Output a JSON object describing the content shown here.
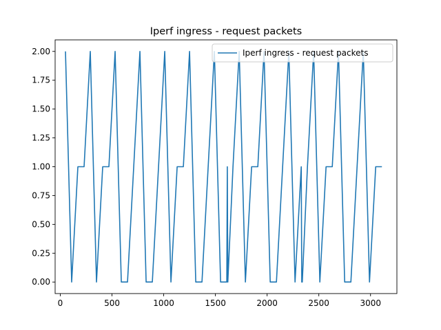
{
  "chart_data": {
    "type": "line",
    "title": "Iperf ingress - request packets",
    "xlabel": "",
    "ylabel": "",
    "xlim": [
      -50,
      3255
    ],
    "ylim": [
      -0.1,
      2.1
    ],
    "xticks": [
      0,
      500,
      1000,
      1500,
      2000,
      2500,
      3000
    ],
    "yticks": [
      0.0,
      0.25,
      0.5,
      0.75,
      1.0,
      1.25,
      1.5,
      1.75,
      2.0
    ],
    "ytick_labels": [
      "0.00",
      "0.25",
      "0.50",
      "0.75",
      "1.00",
      "1.25",
      "1.50",
      "1.75",
      "2.00"
    ],
    "grid": false,
    "legend_position": "top-right",
    "series": [
      {
        "name": "Iperf ingress - request packets",
        "color": "#1f77b4",
        "x": [
          50,
          110,
          170,
          230,
          290,
          350,
          410,
          470,
          530,
          590,
          650,
          710,
          770,
          830,
          890,
          950,
          1010,
          1070,
          1130,
          1190,
          1250,
          1310,
          1370,
          1430,
          1490,
          1550,
          1610,
          1615,
          1620,
          1670,
          1730,
          1790,
          1850,
          1910,
          1970,
          2030,
          2090,
          2150,
          2210,
          2270,
          2330,
          2335,
          2340,
          2390,
          2450,
          2510,
          2570,
          2630,
          2690,
          2750,
          2810,
          2870,
          2930,
          2990,
          3050,
          3110
        ],
        "y": [
          2,
          0,
          1,
          1,
          2,
          0,
          1,
          1,
          2,
          0,
          0,
          1,
          2,
          0,
          0,
          1,
          2,
          0,
          1,
          1,
          2,
          0,
          0,
          1,
          2,
          0,
          0,
          1,
          0,
          1,
          2,
          0,
          1,
          1,
          2,
          0,
          0,
          1,
          2,
          0,
          1,
          0,
          0,
          1,
          2,
          0,
          1,
          1,
          2,
          0,
          0,
          1,
          2,
          0,
          1,
          1
        ]
      }
    ]
  }
}
